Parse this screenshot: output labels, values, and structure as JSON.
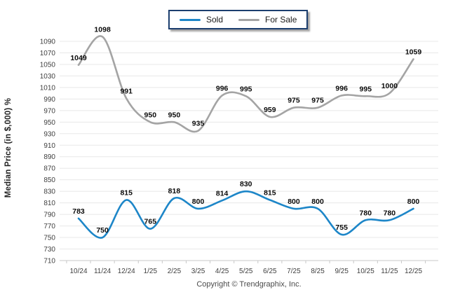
{
  "legend": {
    "items": [
      {
        "label": "Sold"
      },
      {
        "label": "For Sale"
      }
    ]
  },
  "footer": {
    "copyright": "Copyright © Trendgraphix, Inc."
  },
  "colors": {
    "sold": "#1D86C8",
    "for_sale": "#A4A4A4",
    "grid": "#E8E8E8",
    "axis": "#C8C8C8",
    "tick_label": "#3F3F3F",
    "data_label": "#0A0A0A",
    "legend_border": "#1C3E6E"
  },
  "chart_data": {
    "type": "line",
    "title": "",
    "xlabel": "",
    "ylabel": "Median Price (in $,000) %",
    "categories": [
      "10/24",
      "11/24",
      "12/24",
      "1/25",
      "2/25",
      "3/25",
      "4/25",
      "5/25",
      "6/25",
      "7/25",
      "8/25",
      "9/25",
      "10/25",
      "11/25",
      "12/25"
    ],
    "series": [
      {
        "name": "Sold",
        "color": "#1D86C8",
        "values": [
          783,
          750,
          815,
          765,
          818,
          800,
          814,
          830,
          815,
          800,
          800,
          755,
          780,
          780,
          800
        ]
      },
      {
        "name": "For Sale",
        "color": "#A4A4A4",
        "values": [
          1049,
          1098,
          991,
          950,
          950,
          935,
          996,
          995,
          959,
          975,
          975,
          996,
          995,
          1000,
          1059
        ]
      }
    ],
    "ylim": [
      710,
      1090
    ],
    "ytick_step": 20,
    "grid": true,
    "legend_position": "top",
    "data_labels": true,
    "smooth": true
  }
}
